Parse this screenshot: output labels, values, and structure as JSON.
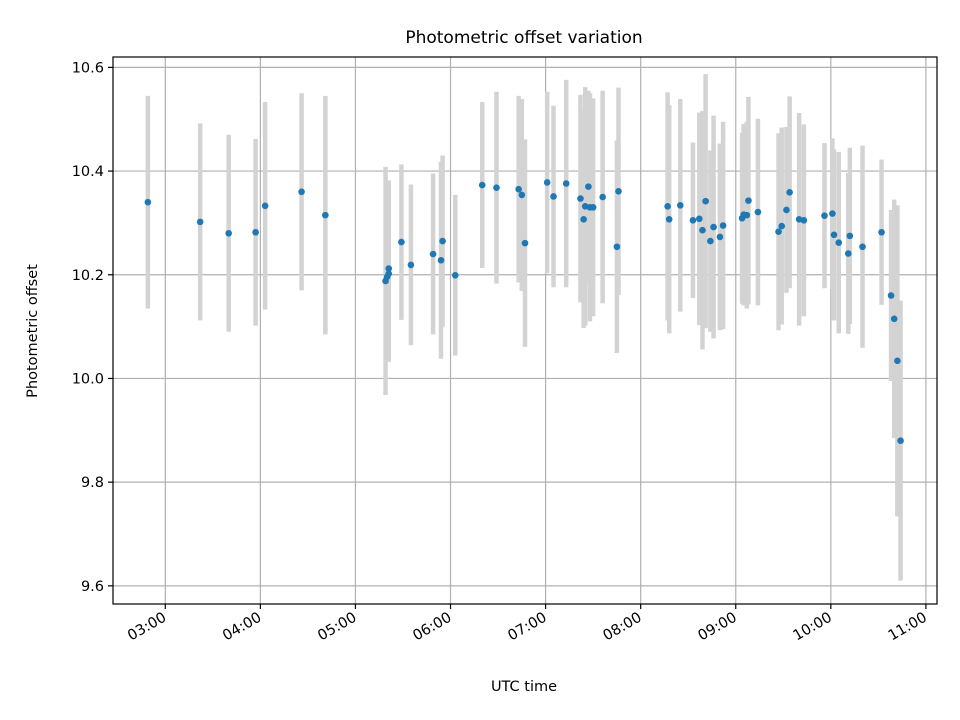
{
  "chart_data": {
    "type": "scatter",
    "title": "Photometric offset variation",
    "xlabel": "UTC time",
    "ylabel": "Photometric offset",
    "xlim": [
      "02:27",
      "11:07"
    ],
    "ylim": [
      9.565,
      10.62
    ],
    "x_ticks": [
      "03:00",
      "04:00",
      "05:00",
      "06:00",
      "07:00",
      "08:00",
      "09:00",
      "10:00",
      "11:00"
    ],
    "y_ticks": [
      9.6,
      9.8,
      10.0,
      10.2,
      10.4,
      10.6
    ],
    "y_tick_labels": [
      "9.6",
      "9.8",
      "10.0",
      "10.2",
      "10.4",
      "10.6"
    ],
    "grid": true,
    "colors": {
      "point": "#1f77b4",
      "errorbar": "#d3d3d3",
      "grid": "#b0b0b0",
      "axis": "#000000"
    },
    "series": [
      {
        "x": [
          "02:49",
          "03:22",
          "03:40",
          "03:57",
          "04:03",
          "04:26",
          "04:41",
          "05:19",
          "05:20",
          "05:21",
          "05:21",
          "05:29",
          "05:35",
          "05:49",
          "05:54",
          "05:55",
          "06:03",
          "06:20",
          "06:29",
          "06:43",
          "06:45",
          "06:47",
          "07:01",
          "07:05",
          "07:13",
          "07:22",
          "07:24",
          "07:25",
          "07:27",
          "07:28",
          "07:30",
          "07:36",
          "07:45",
          "07:46",
          "08:17",
          "08:18",
          "08:25",
          "08:33",
          "08:37",
          "08:39",
          "08:41",
          "08:44",
          "08:46",
          "08:50",
          "08:52",
          "09:04",
          "09:05",
          "09:07",
          "09:08",
          "09:14",
          "09:27",
          "09:29",
          "09:32",
          "09:34",
          "09:40",
          "09:43",
          "09:56",
          "10:01",
          "10:02",
          "10:05",
          "10:11",
          "10:12",
          "10:20",
          "10:32",
          "10:38",
          "10:40",
          "10:42",
          "10:44"
        ],
        "y": [
          10.34,
          10.302,
          10.28,
          10.282,
          10.333,
          10.36,
          10.315,
          10.188,
          10.196,
          10.202,
          10.212,
          10.263,
          10.219,
          10.24,
          10.228,
          10.265,
          10.199,
          10.373,
          10.368,
          10.365,
          10.354,
          10.261,
          10.378,
          10.351,
          10.376,
          10.347,
          10.307,
          10.332,
          10.37,
          10.33,
          10.33,
          10.35,
          10.254,
          10.361,
          10.332,
          10.307,
          10.334,
          10.305,
          10.308,
          10.286,
          10.342,
          10.265,
          10.292,
          10.273,
          10.295,
          10.309,
          10.316,
          10.315,
          10.343,
          10.321,
          10.283,
          10.294,
          10.325,
          10.359,
          10.307,
          10.305,
          10.314,
          10.318,
          10.277,
          10.262,
          10.241,
          10.275,
          10.254,
          10.282,
          10.16,
          10.115,
          10.034,
          9.88
        ],
        "yerr": [
          0.205,
          0.19,
          0.19,
          0.18,
          0.2,
          0.19,
          0.23,
          0.22,
          0.16,
          0.17,
          0.17,
          0.15,
          0.155,
          0.155,
          0.19,
          0.165,
          0.155,
          0.16,
          0.185,
          0.18,
          0.185,
          0.2,
          0.175,
          0.175,
          0.2,
          0.2,
          0.21,
          0.23,
          0.185,
          0.22,
          0.21,
          0.205,
          0.205,
          0.2,
          0.22,
          0.22,
          0.205,
          0.15,
          0.205,
          0.23,
          0.245,
          0.175,
          0.215,
          0.18,
          0.2,
          0.165,
          0.175,
          0.18,
          0.2,
          0.18,
          0.19,
          0.19,
          0.16,
          0.185,
          0.205,
          0.185,
          0.14,
          0.145,
          0.165,
          0.175,
          0.155,
          0.17,
          0.195,
          0.14,
          0.165,
          0.23,
          0.3,
          0.27
        ]
      }
    ]
  }
}
